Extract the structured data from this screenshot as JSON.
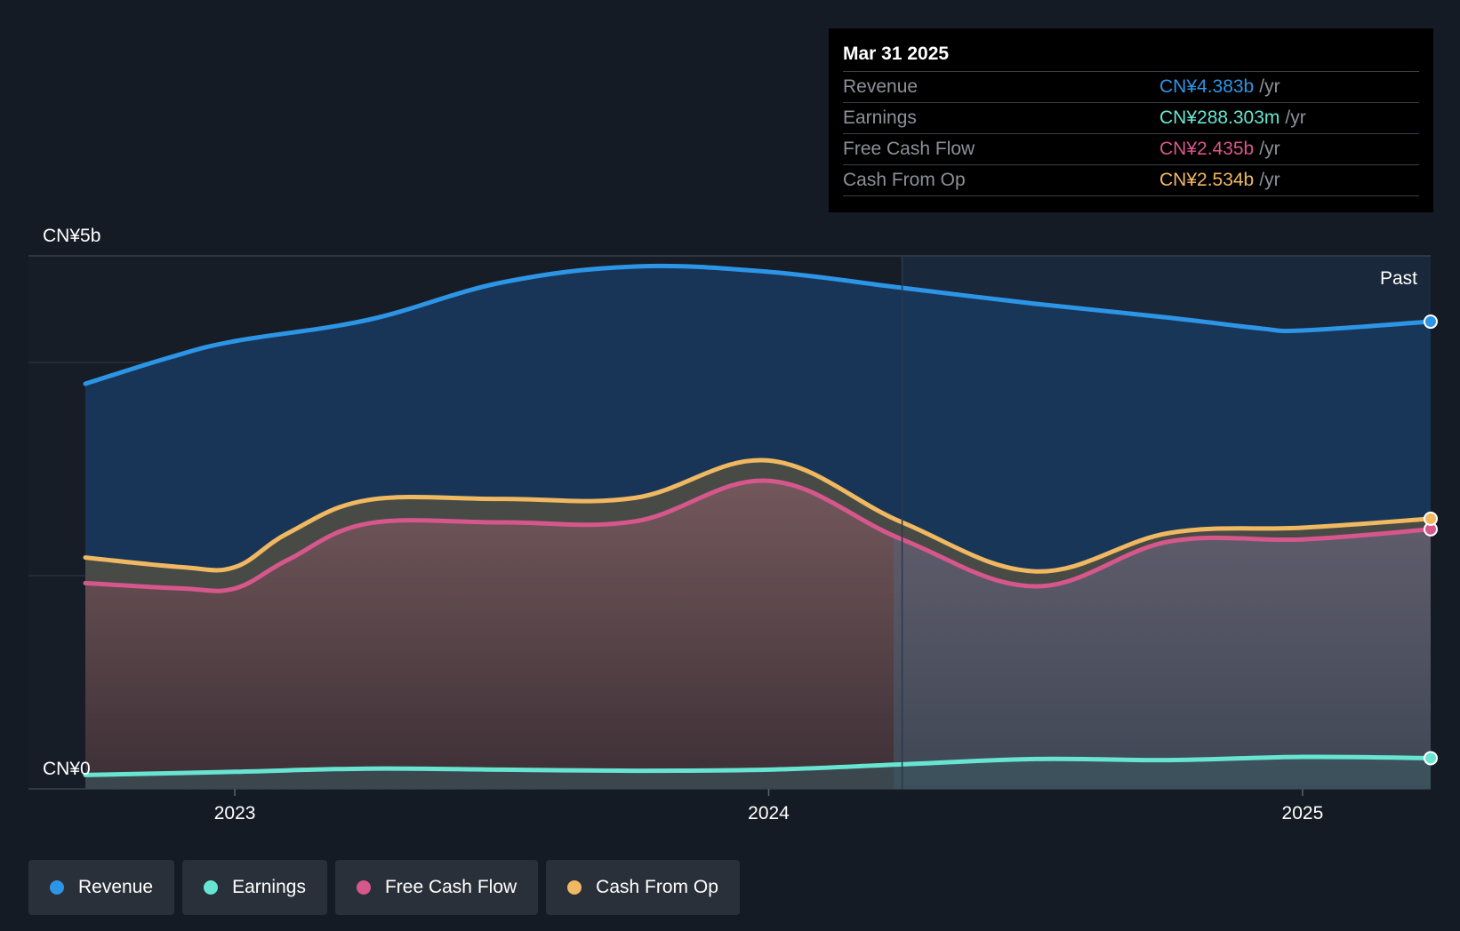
{
  "tooltip": {
    "date": "Mar 31 2025",
    "unit": "/yr",
    "rows": [
      {
        "label": "Revenue",
        "value": "CN¥4.383b",
        "color": "#2d95e6"
      },
      {
        "label": "Earnings",
        "value": "CN¥288.303m",
        "color": "#67e5d2"
      },
      {
        "label": "Free Cash Flow",
        "value": "CN¥2.435b",
        "color": "#d6578b"
      },
      {
        "label": "Cash From Op",
        "value": "CN¥2.534b",
        "color": "#f0b861"
      }
    ]
  },
  "past_label": "Past",
  "legend": [
    {
      "label": "Revenue",
      "color": "#2d95e6"
    },
    {
      "label": "Earnings",
      "color": "#67e5d2"
    },
    {
      "label": "Free Cash Flow",
      "color": "#d6578b"
    },
    {
      "label": "Cash From Op",
      "color": "#f0b861"
    }
  ],
  "chart_data": {
    "type": "area",
    "y_tick_labels": [
      "CN¥0",
      "CN¥5b"
    ],
    "ylim": [
      0,
      5
    ],
    "xlim": [
      2022.72,
      2025.24
    ],
    "x_ticks": [
      2023,
      2024,
      2025
    ],
    "x_tick_labels": [
      "2023",
      "2024",
      "2025"
    ],
    "past_divider_x": 2024.25,
    "grid": true,
    "series": [
      {
        "name": "Revenue",
        "color": "#2d95e6",
        "x": [
          2022.72,
          2022.88,
          2023.0,
          2023.25,
          2023.5,
          2023.75,
          2024.0,
          2024.25,
          2024.5,
          2024.75,
          2024.92,
          2025.0,
          2025.24
        ],
        "y": [
          3.8,
          4.05,
          4.2,
          4.4,
          4.75,
          4.9,
          4.85,
          4.7,
          4.55,
          4.42,
          4.32,
          4.3,
          4.383
        ]
      },
      {
        "name": "Cash From Op",
        "color": "#f0b861",
        "x": [
          2022.72,
          2022.9,
          2023.0,
          2023.1,
          2023.25,
          2023.5,
          2023.75,
          2024.0,
          2024.25,
          2024.5,
          2024.75,
          2025.0,
          2025.24
        ],
        "y": [
          2.17,
          2.08,
          2.08,
          2.4,
          2.71,
          2.72,
          2.73,
          3.08,
          2.5,
          2.04,
          2.4,
          2.45,
          2.534
        ]
      },
      {
        "name": "Free Cash Flow",
        "color": "#d6578b",
        "x": [
          2022.72,
          2022.9,
          2023.0,
          2023.1,
          2023.25,
          2023.5,
          2023.75,
          2024.0,
          2024.25,
          2024.5,
          2024.75,
          2025.0,
          2025.24
        ],
        "y": [
          1.93,
          1.88,
          1.88,
          2.15,
          2.49,
          2.5,
          2.51,
          2.89,
          2.34,
          1.9,
          2.32,
          2.34,
          2.435
        ]
      },
      {
        "name": "Earnings",
        "color": "#67e5d2",
        "x": [
          2022.72,
          2023.0,
          2023.25,
          2023.5,
          2023.75,
          2024.0,
          2024.25,
          2024.5,
          2024.75,
          2025.0,
          2025.24
        ],
        "y": [
          0.13,
          0.16,
          0.19,
          0.18,
          0.17,
          0.18,
          0.23,
          0.28,
          0.27,
          0.3,
          0.288
        ]
      }
    ]
  }
}
